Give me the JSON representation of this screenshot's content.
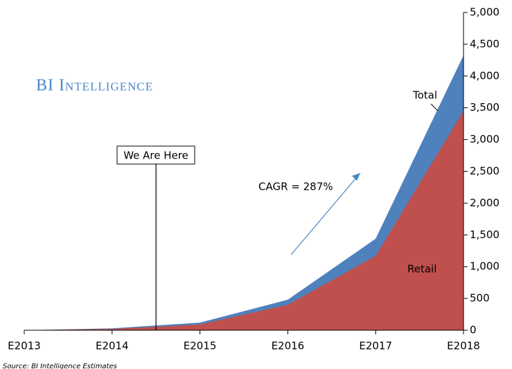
{
  "chart_data": {
    "type": "area",
    "brand": "BI Intelligence",
    "source": "Source: BI Intelligence Estimates",
    "annotations": {
      "marker": "We Are Here",
      "cagr": "CAGR = 287%"
    },
    "categories": [
      "E2013",
      "E2014",
      "E2015",
      "E2016",
      "E2017",
      "E2018"
    ],
    "series": [
      {
        "name": "Total",
        "color": "#4f81bd",
        "values": [
          0,
          30,
          120,
          480,
          1440,
          4325
        ]
      },
      {
        "name": "Retail",
        "color": "#c0504d",
        "values": [
          0,
          20,
          90,
          400,
          1170,
          3450
        ]
      }
    ],
    "ylim": [
      0,
      5000
    ],
    "yticks": [
      0,
      {
        "value": 500,
        "label": "500"
      },
      {
        "value": 1000,
        "label": "1,000"
      },
      {
        "value": 1500,
        "label": "1,500"
      },
      {
        "value": 2000,
        "label": "2,000"
      },
      {
        "value": 2500,
        "label": "2,500"
      },
      {
        "value": 3000,
        "label": "3,000"
      },
      {
        "value": 3500,
        "label": "3,500"
      },
      {
        "value": 4000,
        "label": "4,000"
      },
      {
        "value": 4500,
        "label": "4,500"
      },
      {
        "value": 5000,
        "label": "5,000"
      }
    ],
    "y_axis_side": "right"
  }
}
